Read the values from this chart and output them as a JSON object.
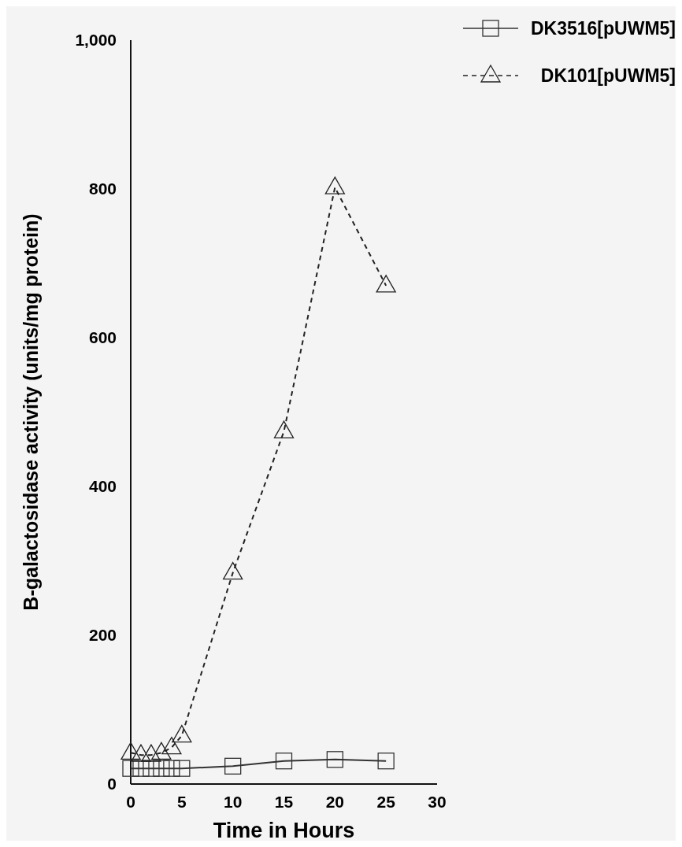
{
  "chart_data": {
    "type": "line",
    "xlabel": "Time in Hours",
    "ylabel": "B-galactosidase activity (units/mg protein)",
    "x": [
      0,
      1,
      2,
      3,
      4,
      5,
      10,
      15,
      20,
      25
    ],
    "xlim": [
      0,
      30
    ],
    "xticks": [
      0,
      5,
      10,
      15,
      20,
      25,
      30
    ],
    "ylim": [
      0,
      1000
    ],
    "yticks": [
      0,
      200,
      400,
      600,
      800,
      {
        "value": 1000,
        "label": "1,000"
      }
    ],
    "legend": "top right",
    "grid": false,
    "series": [
      {
        "name": "DK3516[pUWM5]",
        "color": "#333333",
        "marker": "square",
        "line_style": "solid",
        "values": [
          21,
          21,
          21,
          21,
          21,
          21,
          24,
          31,
          33,
          31
        ]
      },
      {
        "name": "DK101[pUWM5]",
        "color": "#222222",
        "marker": "triangle",
        "line_style": "dashed",
        "values": [
          42,
          39,
          39,
          42,
          49,
          65,
          284,
          474,
          802,
          670
        ]
      }
    ]
  }
}
